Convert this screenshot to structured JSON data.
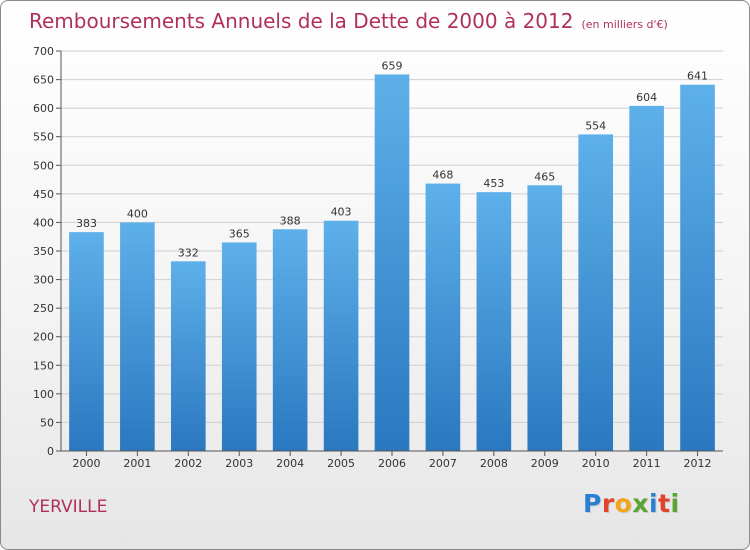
{
  "chart_data": {
    "type": "bar",
    "title": "Remboursements Annuels de la Dette de 2000 à 2012",
    "subtitle": "(en milliers d'€)",
    "xlabel": "",
    "ylabel": "",
    "categories": [
      "2000",
      "2001",
      "2002",
      "2003",
      "2004",
      "2005",
      "2006",
      "2007",
      "2008",
      "2009",
      "2010",
      "2011",
      "2012"
    ],
    "values": [
      383,
      400,
      332,
      365,
      388,
      403,
      659,
      468,
      453,
      465,
      554,
      604,
      641
    ],
    "ylim": [
      0,
      700
    ],
    "yticks": [
      0,
      50,
      100,
      150,
      200,
      250,
      300,
      350,
      400,
      450,
      500,
      550,
      600,
      650,
      700
    ],
    "grid": true,
    "data_labels": true,
    "bar_color": "#3d8fd6"
  },
  "footer": {
    "town": "YERVILLE",
    "logo_letters": [
      "P",
      "r",
      "o",
      "x",
      "i",
      "t",
      "i"
    ],
    "logo_colors": [
      "#2a7fd4",
      "#e0452c",
      "#f2a51a",
      "#5aa532",
      "#2a7fd4",
      "#e0452c",
      "#5aa532"
    ]
  }
}
